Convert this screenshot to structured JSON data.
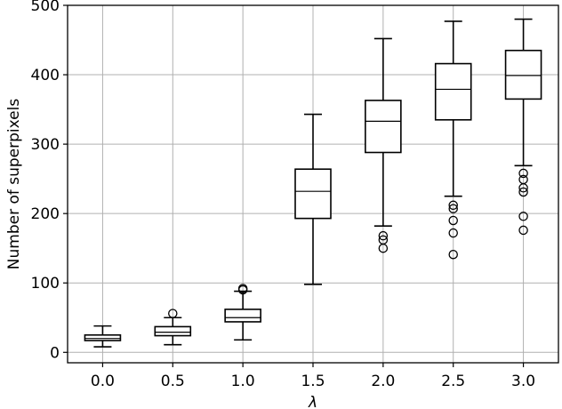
{
  "chart_data": {
    "type": "box",
    "xlabel": "λ",
    "ylabel": "Number of superpixels",
    "ylim": [
      -15,
      500
    ],
    "yticks": [
      "0",
      "100",
      "200",
      "300",
      "400",
      "500"
    ],
    "ytick_values": [
      0,
      100,
      200,
      300,
      400,
      500
    ],
    "grid": true,
    "colors": {
      "box": "#000000",
      "grid": "#b0b0b0",
      "median": "#000000"
    },
    "categories": [
      "0.0",
      "0.5",
      "1.0",
      "1.5",
      "2.0",
      "2.5",
      "3.0"
    ],
    "boxes": [
      {
        "category": "0.0",
        "whisker_low": 8,
        "q1": 17,
        "median": 20,
        "q3": 25,
        "whisker_high": 38,
        "outliers": []
      },
      {
        "category": "0.5",
        "whisker_low": 11,
        "q1": 24,
        "median": 29,
        "q3": 37,
        "whisker_high": 50,
        "outliers": [
          56
        ]
      },
      {
        "category": "1.0",
        "whisker_low": 18,
        "q1": 44,
        "median": 50,
        "q3": 62,
        "whisker_high": 88,
        "outliers": [
          90,
          92
        ]
      },
      {
        "category": "1.5",
        "whisker_low": 98,
        "q1": 193,
        "median": 232,
        "q3": 264,
        "whisker_high": 343,
        "outliers": []
      },
      {
        "category": "2.0",
        "whisker_low": 182,
        "q1": 288,
        "median": 333,
        "q3": 363,
        "whisker_high": 452,
        "outliers": [
          168,
          162,
          150
        ]
      },
      {
        "category": "2.5",
        "whisker_low": 225,
        "q1": 335,
        "median": 379,
        "q3": 416,
        "whisker_high": 477,
        "outliers": [
          212,
          207,
          190,
          172,
          141
        ]
      },
      {
        "category": "3.0",
        "whisker_low": 269,
        "q1": 365,
        "median": 399,
        "q3": 435,
        "whisker_high": 480,
        "outliers": [
          258,
          249,
          237,
          231,
          196,
          176
        ]
      }
    ]
  }
}
